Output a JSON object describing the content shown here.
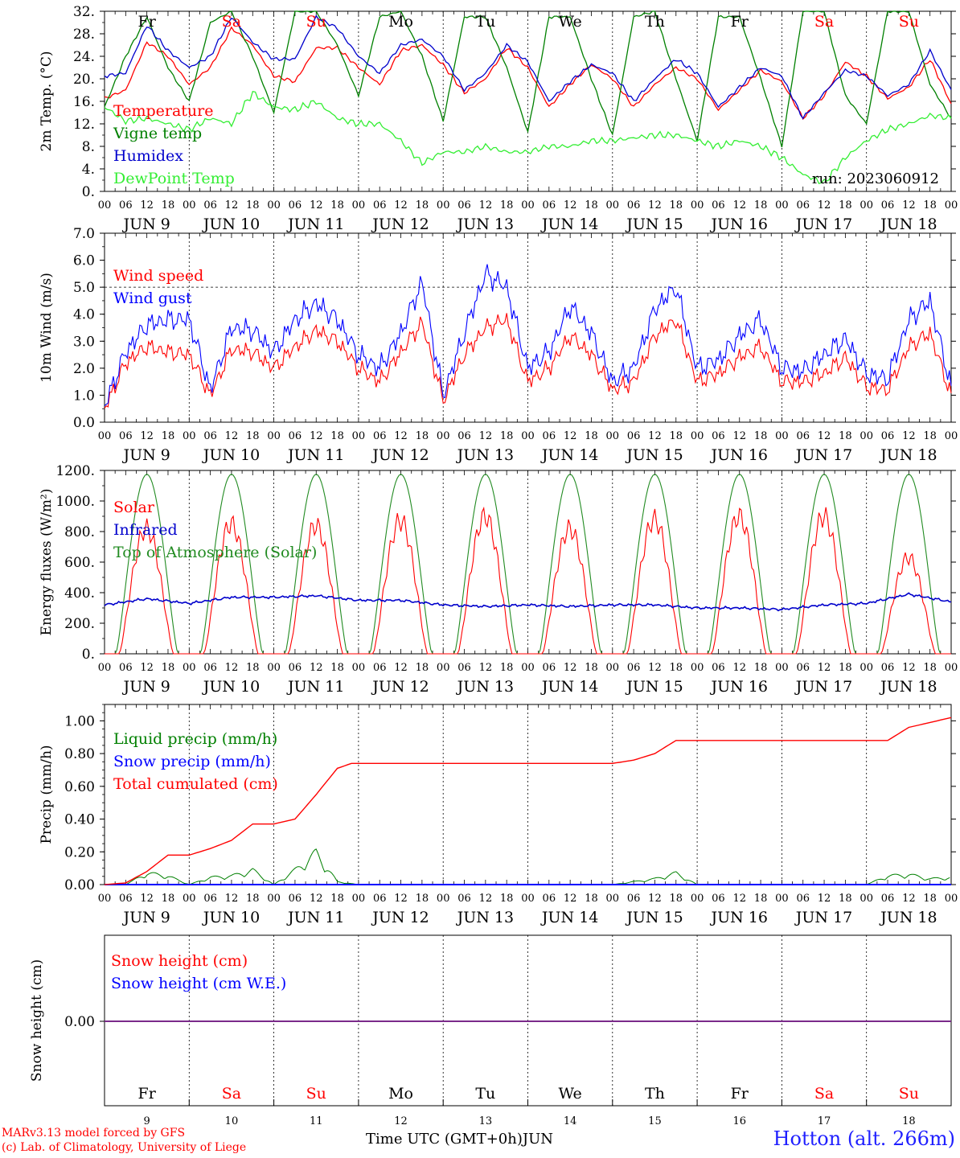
{
  "chart_data": [
    {
      "type": "line",
      "ylabel": "2m Temp. (°C)",
      "ylim": [
        0,
        32
      ],
      "yticks": [
        "0.",
        "4.",
        "8.",
        "12.",
        "16.",
        "20.",
        "24.",
        "28.",
        "32."
      ],
      "day_names": [
        "Fr",
        "Sa",
        "Su",
        "Mo",
        "Tu",
        "We",
        "Th",
        "Fr",
        "Sa",
        "Su"
      ],
      "weekend_index": [
        1,
        2,
        8,
        9
      ],
      "run_label": "run: 2023060912",
      "x_hours": [
        0,
        6,
        12,
        18,
        24,
        30,
        36,
        42,
        48,
        54,
        60,
        66,
        72,
        78,
        84,
        90,
        96,
        102,
        108,
        114,
        120,
        126,
        132,
        138,
        144,
        150,
        156,
        162,
        168,
        174,
        180,
        186,
        192,
        198,
        204,
        210,
        216,
        222,
        228,
        234,
        240
      ],
      "series": [
        {
          "name": "Temperature",
          "color": "#ff0000",
          "values": [
            16.5,
            18,
            26.5,
            24,
            19,
            22,
            29,
            26,
            20.5,
            19.5,
            25.5,
            25.5,
            22,
            19,
            25,
            26,
            22.5,
            17.5,
            20,
            25.5,
            22,
            15,
            19,
            22.5,
            20,
            15,
            19,
            22,
            20,
            14.5,
            18,
            21.5,
            19.5,
            13,
            17,
            23,
            20.5,
            16.5,
            18.5,
            23.5,
            15.5
          ]
        },
        {
          "name": "Vigne temp",
          "color": "#008000",
          "values": [
            15,
            24,
            31,
            22,
            16,
            30,
            32,
            24,
            14,
            32,
            32,
            26,
            17,
            31,
            32,
            24,
            12.5,
            31,
            31,
            22,
            10.5,
            31,
            31,
            20,
            10,
            31,
            32,
            20,
            9,
            31,
            31,
            20,
            8,
            32,
            32,
            17,
            12,
            32,
            32,
            19,
            13
          ]
        },
        {
          "name": "Humidex",
          "color": "#0000cc",
          "values": [
            20.5,
            21,
            29.5,
            25,
            22,
            24,
            31,
            26.5,
            23.5,
            23.5,
            31,
            29,
            24,
            21,
            26,
            27,
            24,
            18,
            21,
            26,
            23,
            16,
            19.5,
            22.5,
            21,
            16,
            20,
            23.5,
            21,
            15,
            18.5,
            22,
            20.5,
            13,
            17.5,
            21.5,
            20.5,
            17,
            19,
            25,
            18
          ]
        },
        {
          "name": "DewPoint Temp",
          "color": "#33ee33",
          "values": [
            15,
            12.5,
            13,
            12,
            11,
            13,
            12,
            17.5,
            15,
            14.5,
            16,
            13,
            12,
            12,
            9,
            5,
            7,
            7,
            8,
            7,
            7,
            8,
            8,
            9,
            9,
            9.5,
            10,
            10,
            9,
            8,
            9,
            8,
            6,
            3,
            1.5,
            6,
            9,
            11,
            12,
            13.5,
            13
          ]
        }
      ]
    },
    {
      "type": "line",
      "ylabel": "10m Wind (m/s)",
      "ylim": [
        0,
        7
      ],
      "yticks": [
        "0.0",
        "1.0",
        "2.0",
        "3.0",
        "4.0",
        "5.0",
        "6.0",
        "7.0"
      ],
      "x_hours": [
        0,
        6,
        12,
        18,
        24,
        30,
        36,
        42,
        48,
        54,
        60,
        66,
        72,
        78,
        84,
        90,
        96,
        102,
        108,
        114,
        120,
        126,
        132,
        138,
        144,
        150,
        156,
        162,
        168,
        174,
        180,
        186,
        192,
        198,
        204,
        210,
        216,
        222,
        228,
        234,
        240
      ],
      "series": [
        {
          "name": "Wind speed",
          "color": "#ff0000",
          "values": [
            0.5,
            2.2,
            2.8,
            2.6,
            2.5,
            1.0,
            2.7,
            2.6,
            2.0,
            2.8,
            3.4,
            3.0,
            2.0,
            1.5,
            2.6,
            3.7,
            0.8,
            2.5,
            3.5,
            3.8,
            1.5,
            2.0,
            3.2,
            2.5,
            1.2,
            1.5,
            3.2,
            3.8,
            1.5,
            1.8,
            2.4,
            2.8,
            1.5,
            1.5,
            1.8,
            2.4,
            1.3,
            1.2,
            2.8,
            3.3,
            1.0
          ]
        },
        {
          "name": "Wind gust",
          "color": "#0000ff",
          "values": [
            0.6,
            2.6,
            3.6,
            3.8,
            3.8,
            1.2,
            3.5,
            3.4,
            2.6,
            3.8,
            4.4,
            3.8,
            2.5,
            2.0,
            3.3,
            5.2,
            1.0,
            3.3,
            5.5,
            5.0,
            2.0,
            2.6,
            4.3,
            3.3,
            1.5,
            2.0,
            4.2,
            5.0,
            2.0,
            2.3,
            3.2,
            3.8,
            2.0,
            1.9,
            2.5,
            3.1,
            1.8,
            1.6,
            3.8,
            4.5,
            1.3
          ]
        }
      ],
      "reference_line": 5.0
    },
    {
      "type": "line",
      "ylabel": "Energy fluxes (W/m²)",
      "ylim": [
        0,
        1200
      ],
      "yticks": [
        "0.",
        "200.",
        "400.",
        "600.",
        "800.",
        "1000.",
        "1200."
      ],
      "series": [
        {
          "name": "Solar",
          "color": "#ff0000",
          "daily_peak": [
            820,
            850,
            840,
            870,
            900,
            820,
            880,
            900,
            900,
            630
          ]
        },
        {
          "name": "Infrared",
          "color": "#0000cc",
          "x_hours": [
            0,
            12,
            24,
            36,
            48,
            60,
            72,
            84,
            96,
            108,
            120,
            132,
            144,
            156,
            168,
            180,
            192,
            204,
            216,
            228,
            240
          ],
          "values": [
            320,
            360,
            330,
            370,
            370,
            380,
            350,
            350,
            320,
            310,
            320,
            310,
            320,
            320,
            300,
            300,
            290,
            320,
            330,
            390,
            340
          ]
        },
        {
          "name": "Top of Atmosphere (Solar)",
          "color": "#228b22",
          "daily_peak": [
            1175,
            1175,
            1175,
            1175,
            1175,
            1175,
            1175,
            1175,
            1175,
            1175
          ]
        }
      ]
    },
    {
      "type": "line",
      "ylabel": "Precip (mm/h)",
      "ylim": [
        0,
        1.1
      ],
      "yticks": [
        "0.00",
        "0.20",
        "0.40",
        "0.60",
        "0.80",
        "1.00"
      ],
      "series": [
        {
          "name": "Liquid precip (mm/h)",
          "color": "#008000",
          "x_hours": [
            0,
            6,
            12,
            18,
            24,
            30,
            36,
            42,
            48,
            54,
            60,
            66,
            72,
            96,
            144,
            156,
            162,
            168,
            216,
            222,
            228,
            234,
            240
          ],
          "values": [
            0,
            0,
            0.08,
            0.06,
            0,
            0.05,
            0.06,
            0.1,
            0,
            0.1,
            0.22,
            0.02,
            0,
            0,
            0,
            0.04,
            0.08,
            0,
            0,
            0.06,
            0.07,
            0.04,
            0.05
          ]
        },
        {
          "name": "Snow precip (mm/h)",
          "color": "#0000ff",
          "x_hours": [
            0,
            240
          ],
          "values": [
            0,
            0
          ]
        },
        {
          "name": "Total cumulated (cm)",
          "color": "#ff0000",
          "x_hours": [
            0,
            6,
            12,
            18,
            24,
            30,
            36,
            42,
            48,
            54,
            60,
            66,
            70,
            72,
            96,
            144,
            150,
            156,
            162,
            168,
            216,
            222,
            228,
            234,
            240
          ],
          "values": [
            0,
            0.01,
            0.08,
            0.18,
            0.18,
            0.22,
            0.27,
            0.37,
            0.37,
            0.4,
            0.55,
            0.71,
            0.74,
            0.74,
            0.74,
            0.74,
            0.76,
            0.8,
            0.88,
            0.88,
            0.88,
            0.88,
            0.96,
            0.99,
            1.02
          ]
        }
      ]
    },
    {
      "type": "line",
      "ylabel": "Snow height (cm)",
      "yticks": [
        "0.00"
      ],
      "series": [
        {
          "name": "Snow height (cm)",
          "color": "#ff0000",
          "values": [
            0,
            0
          ]
        },
        {
          "name": "Snow height (cm W.E.)",
          "color": "#0000ff",
          "values": [
            0,
            0
          ]
        }
      ],
      "day_numbers": [
        "9",
        "10",
        "11",
        "12",
        "13",
        "14",
        "15",
        "16",
        "17",
        "18"
      ],
      "xlabel": "Time UTC (GMT+0h)",
      "month": "JUN"
    }
  ],
  "axis": {
    "hour_ticks": [
      "00",
      "06",
      "12",
      "18"
    ],
    "last_tick": "00",
    "day_labels": [
      "JUN 9",
      "JUN 10",
      "JUN 11",
      "JUN 12",
      "JUN 13",
      "JUN 14",
      "JUN 15",
      "JUN 16",
      "JUN 17",
      "JUN 18"
    ]
  },
  "footer": {
    "model_line1": "MARv3.13 model forced by GFS",
    "model_line2": "(c) Lab. of Climatology, University of Liege",
    "station": "Hotton (alt. 266m)"
  }
}
